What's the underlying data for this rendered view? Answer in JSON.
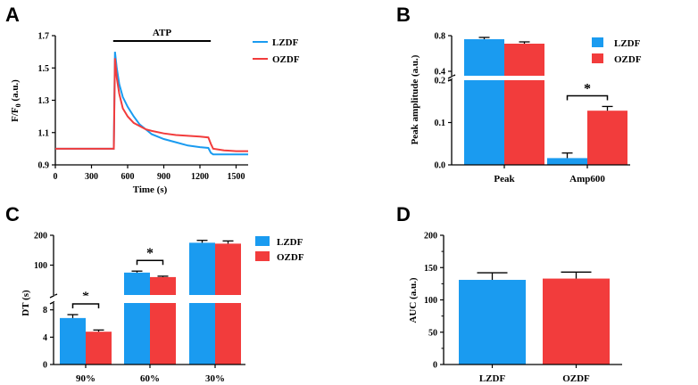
{
  "colors": {
    "LZDF": "#1a9bf0",
    "OZDF": "#f23c3c"
  },
  "chart_data": [
    {
      "panel": "A",
      "type": "line",
      "xlabel": "Time (s)",
      "ylabel": "F/F0 (a.u.)",
      "ylabel_main": "F/F",
      "ylabel_sub": "0",
      "ylabel_tail": " (a.u.)",
      "xlim": [
        0,
        1600
      ],
      "ylim": [
        0.9,
        1.7
      ],
      "xticks": [
        "0",
        "300",
        "600",
        "900",
        "1200",
        "1500"
      ],
      "yticks": [
        "0.9",
        "1.1",
        "1.3",
        "1.5",
        "1.7"
      ],
      "annotation": {
        "text": "ATP",
        "x_start": 480,
        "x_end": 1290
      },
      "legend": [
        "LZDF",
        "OZDF"
      ],
      "series": [
        {
          "name": "LZDF",
          "x": [
            0,
            300,
            470,
            485,
            495,
            510,
            530,
            560,
            600,
            650,
            700,
            750,
            800,
            900,
            1000,
            1100,
            1200,
            1270,
            1290,
            1310,
            1400,
            1500,
            1600
          ],
          "y": [
            1.0,
            1.0,
            1.0,
            1.0,
            1.6,
            1.5,
            1.4,
            1.32,
            1.26,
            1.2,
            1.15,
            1.12,
            1.09,
            1.06,
            1.04,
            1.02,
            1.01,
            1.005,
            0.975,
            0.965,
            0.965,
            0.965,
            0.965
          ]
        },
        {
          "name": "OZDF",
          "x": [
            0,
            300,
            470,
            485,
            495,
            510,
            530,
            560,
            600,
            650,
            700,
            750,
            800,
            900,
            1000,
            1100,
            1200,
            1270,
            1290,
            1310,
            1400,
            1500,
            1600
          ],
          "y": [
            1.0,
            1.0,
            1.0,
            1.0,
            1.56,
            1.44,
            1.34,
            1.25,
            1.2,
            1.16,
            1.14,
            1.12,
            1.11,
            1.095,
            1.085,
            1.08,
            1.075,
            1.07,
            1.03,
            1.0,
            0.99,
            0.985,
            0.985
          ]
        }
      ]
    },
    {
      "panel": "B",
      "type": "bar",
      "ylabel": "Peak amplitude (a.u.)",
      "categories": [
        "Peak",
        "Amp600"
      ],
      "axis_break": true,
      "lower_range": [
        0,
        0.2
      ],
      "upper_range": [
        0.35,
        0.8
      ],
      "lower_ticks": [
        "0.0",
        "0.1",
        "0.2"
      ],
      "upper_ticks": [
        "0.4",
        "0.8"
      ],
      "legend": [
        "LZDF",
        "OZDF"
      ],
      "series": [
        {
          "name": "LZDF",
          "values": [
            0.76,
            0.016
          ],
          "errors": [
            0.02,
            0.012
          ]
        },
        {
          "name": "OZDF",
          "values": [
            0.71,
            0.128
          ],
          "errors": [
            0.02,
            0.01
          ]
        }
      ],
      "significance": [
        {
          "category": "Amp600",
          "label": "*"
        }
      ]
    },
    {
      "panel": "C",
      "type": "bar",
      "ylabel": "DT (s)",
      "categories": [
        "90%",
        "60%",
        "30%"
      ],
      "axis_break": true,
      "lower_range": [
        0,
        9
      ],
      "upper_range": [
        0,
        200
      ],
      "lower_ticks": [
        "0",
        "4",
        "8"
      ],
      "upper_ticks": [
        "100",
        "200"
      ],
      "legend": [
        "LZDF",
        "OZDF"
      ],
      "series": [
        {
          "name": "LZDF",
          "values": [
            6.8,
            75,
            175
          ],
          "errors": [
            0.5,
            5,
            8
          ]
        },
        {
          "name": "OZDF",
          "values": [
            4.8,
            60,
            172
          ],
          "errors": [
            0.25,
            3,
            9
          ]
        }
      ],
      "significance": [
        {
          "category": "90%",
          "label": "*"
        },
        {
          "category": "60%",
          "label": "*"
        }
      ]
    },
    {
      "panel": "D",
      "type": "bar",
      "ylabel": "AUC (a.u.)",
      "categories": [
        "LZDF",
        "OZDF"
      ],
      "ylim": [
        0,
        200
      ],
      "yticks": [
        "0",
        "50",
        "100",
        "150",
        "200"
      ],
      "values": [
        131,
        133
      ],
      "errors": [
        11,
        10
      ]
    }
  ]
}
